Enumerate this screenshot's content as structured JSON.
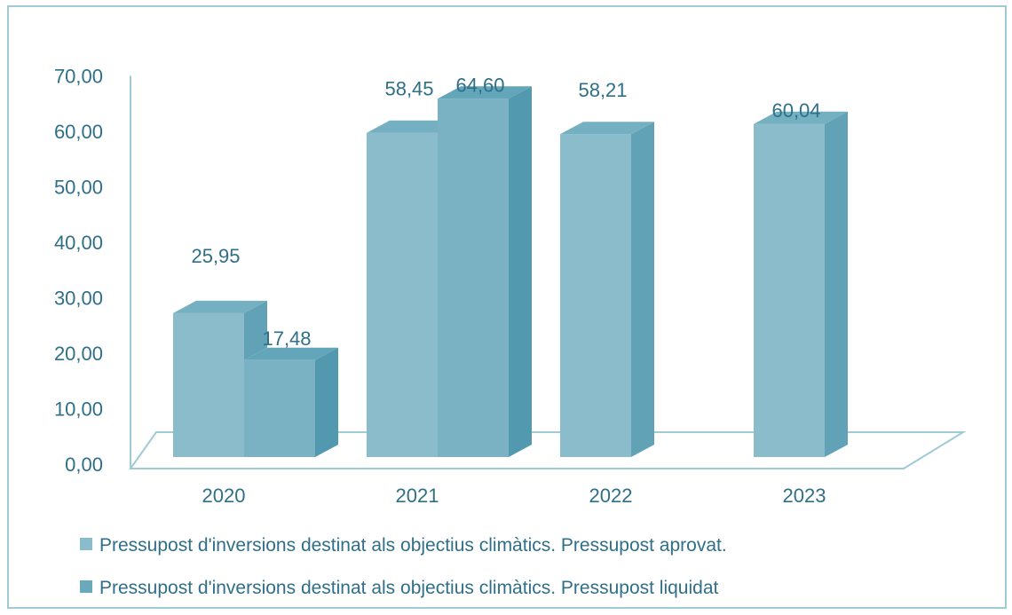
{
  "chart_data": {
    "type": "bar",
    "categories": [
      "2020",
      "2021",
      "2022",
      "2023"
    ],
    "series": [
      {
        "name": "Pressupost d'inversions destinat als objectius climàtics. Pressupost aprovat.",
        "values": [
          25.95,
          58.45,
          58.21,
          60.04
        ],
        "labels": [
          "25,95",
          "58,45",
          "58,21",
          "60,04"
        ]
      },
      {
        "name": "Pressupost d'inversions destinat als objectius climàtics. Pressupost liquidat",
        "values": [
          17.48,
          64.6,
          null,
          null
        ],
        "labels": [
          "17,48",
          "64,60",
          "",
          ""
        ]
      }
    ],
    "yticks": [
      "0,00",
      "10,00",
      "20,00",
      "30,00",
      "40,00",
      "50,00",
      "60,00",
      "70,00"
    ],
    "ylim": [
      0,
      70
    ],
    "grid": false,
    "legend_position": "bottom",
    "colors": {
      "series1_front": "#8bbccb",
      "series1_side": "#62a2b7",
      "series1_top": "#74b0c2",
      "series2_front": "#7ab2c3",
      "series2_side": "#5299af",
      "series2_top": "#63a6ba",
      "axis": "#9fcad6",
      "text": "#2f6f87"
    }
  }
}
